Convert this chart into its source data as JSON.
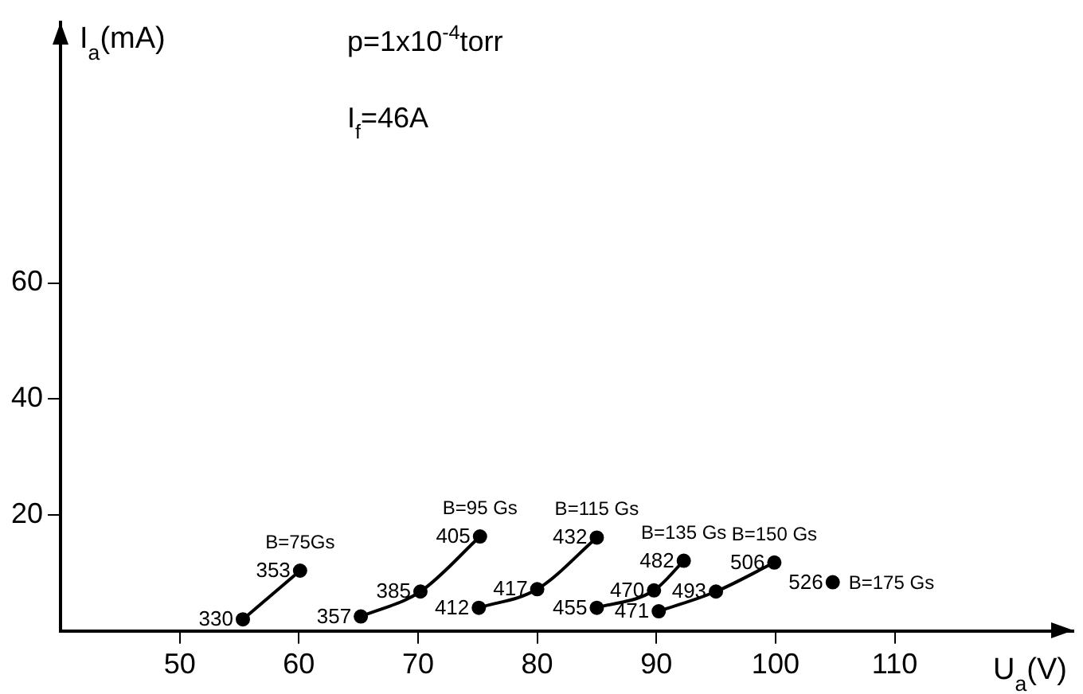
{
  "chart_data": {
    "type": "line",
    "xlabel": "U$_{a}$(V)",
    "ylabel": "I$_{a}$(mA)",
    "xlim": [
      40,
      125
    ],
    "xticks": [
      50,
      60,
      70,
      80,
      90,
      100,
      110
    ],
    "ylim": [
      0,
      105
    ],
    "yticks": [
      20,
      40,
      60
    ],
    "grid": false,
    "legend": false,
    "marker": "circle",
    "line_style": "solid",
    "series": [
      {
        "name": "B=75Gs",
        "color": "#000000",
        "x": [
          55.3,
          60.1
        ],
        "values": [
          2,
          10.4
        ]
      },
      {
        "name": "B=95 Gs",
        "color": "#000000",
        "x": [
          65.2,
          70.2,
          75.2
        ],
        "values": [
          2.5,
          6.8,
          16.3
        ]
      },
      {
        "name": "B=115 Gs",
        "color": "#000000",
        "x": [
          75.1,
          80,
          85
        ],
        "values": [
          4,
          7.2,
          16.1
        ]
      },
      {
        "name": "B=135 Gs",
        "color": "#000000",
        "x": [
          85,
          89.8,
          92.3
        ],
        "values": [
          4,
          7,
          12.1
        ]
      },
      {
        "name": "B=150 Gs",
        "color": "#000000",
        "x": [
          90.2,
          95,
          99.9
        ],
        "values": [
          3.4,
          6.8,
          11.8
        ]
      },
      {
        "name": "B=175 Gs",
        "color": "#000000",
        "x": [
          104.8
        ],
        "values": [
          8.4
        ]
      }
    ],
    "annotations": [
      "p=1x10$^{-4}$torr",
      "I$_{f}$=46A",
      {
        "text": "330",
        "x": 55.3,
        "y": 2
      },
      {
        "text": "353",
        "x": 60.1,
        "y": 10.4
      },
      {
        "text": "357",
        "x": 65.2,
        "y": 2.5
      },
      {
        "text": "385",
        "x": 70.2,
        "y": 6.8
      },
      {
        "text": "405",
        "x": 75.2,
        "y": 16.3
      },
      {
        "text": "412",
        "x": 75.1,
        "y": 4
      },
      {
        "text": "417",
        "x": 80,
        "y": 7.2
      },
      {
        "text": "432",
        "x": 85,
        "y": 16.1
      },
      {
        "text": "455",
        "x": 85,
        "y": 4
      },
      {
        "text": "470",
        "x": 89.8,
        "y": 7
      },
      {
        "text": "482",
        "x": 92.3,
        "y": 12.1
      },
      {
        "text": "471",
        "x": 90.2,
        "y": 3.4
      },
      {
        "text": "493",
        "x": 95,
        "y": 6.8
      },
      {
        "text": "506",
        "x": 99.9,
        "y": 11.8
      },
      {
        "text": "526",
        "x": 104.8,
        "y": 8.4
      }
    ]
  }
}
